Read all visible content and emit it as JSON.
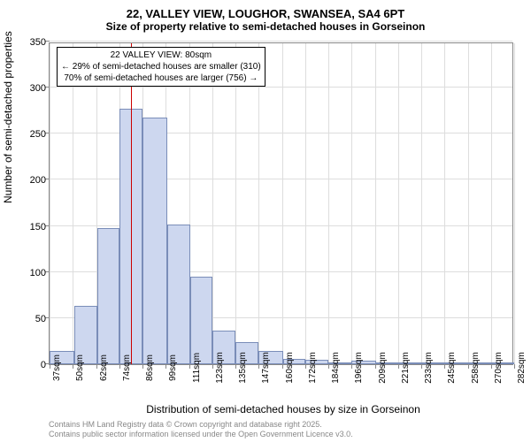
{
  "title": "22, VALLEY VIEW, LOUGHOR, SWANSEA, SA4 6PT",
  "subtitle": "Size of property relative to semi-detached houses in Gorseinon",
  "y_label": "Number of semi-detached properties",
  "x_label": "Distribution of semi-detached houses by size in Gorseinon",
  "footer_line1": "Contains HM Land Registry data © Crown copyright and database right 2025.",
  "footer_line2": "Contains public sector information licensed under the Open Government Licence v3.0.",
  "annotation": {
    "line1": "22 VALLEY VIEW: 80sqm",
    "line2": "← 29% of semi-detached houses are smaller (310)",
    "line3": "70% of semi-detached houses are larger (756) →"
  },
  "chart": {
    "type": "histogram",
    "ylim": [
      0,
      350
    ],
    "ytick_step": 50,
    "y_ticks": [
      0,
      50,
      100,
      150,
      200,
      250,
      300,
      350
    ],
    "x_ticks": [
      "37sqm",
      "50sqm",
      "62sqm",
      "74sqm",
      "86sqm",
      "99sqm",
      "111sqm",
      "123sqm",
      "135sqm",
      "147sqm",
      "160sqm",
      "172sqm",
      "184sqm",
      "196sqm",
      "209sqm",
      "221sqm",
      "233sqm",
      "245sqm",
      "258sqm",
      "270sqm",
      "282sqm"
    ],
    "x_range": [
      37,
      282
    ],
    "marker_x": 80,
    "bar_color": "#cdd7ef",
    "bar_border": "#7a8db8",
    "marker_color": "#cc0000",
    "grid_color": "#dddddd",
    "background_color": "#ffffff",
    "bars": [
      {
        "x0": 37,
        "x1": 50,
        "y": 14
      },
      {
        "x0": 50,
        "x1": 62,
        "y": 63
      },
      {
        "x0": 62,
        "x1": 74,
        "y": 148
      },
      {
        "x0": 74,
        "x1": 86,
        "y": 277
      },
      {
        "x0": 86,
        "x1": 99,
        "y": 268
      },
      {
        "x0": 99,
        "x1": 111,
        "y": 152
      },
      {
        "x0": 111,
        "x1": 123,
        "y": 95
      },
      {
        "x0": 123,
        "x1": 135,
        "y": 36
      },
      {
        "x0": 135,
        "x1": 147,
        "y": 24
      },
      {
        "x0": 147,
        "x1": 160,
        "y": 14
      },
      {
        "x0": 160,
        "x1": 172,
        "y": 6
      },
      {
        "x0": 172,
        "x1": 184,
        "y": 5
      },
      {
        "x0": 184,
        "x1": 196,
        "y": 2
      },
      {
        "x0": 196,
        "x1": 209,
        "y": 4
      },
      {
        "x0": 209,
        "x1": 221,
        "y": 2
      },
      {
        "x0": 221,
        "x1": 233,
        "y": 0
      },
      {
        "x0": 233,
        "x1": 245,
        "y": 0
      },
      {
        "x0": 245,
        "x1": 258,
        "y": 1
      },
      {
        "x0": 258,
        "x1": 270,
        "y": 0
      },
      {
        "x0": 270,
        "x1": 282,
        "y": 1
      }
    ]
  }
}
